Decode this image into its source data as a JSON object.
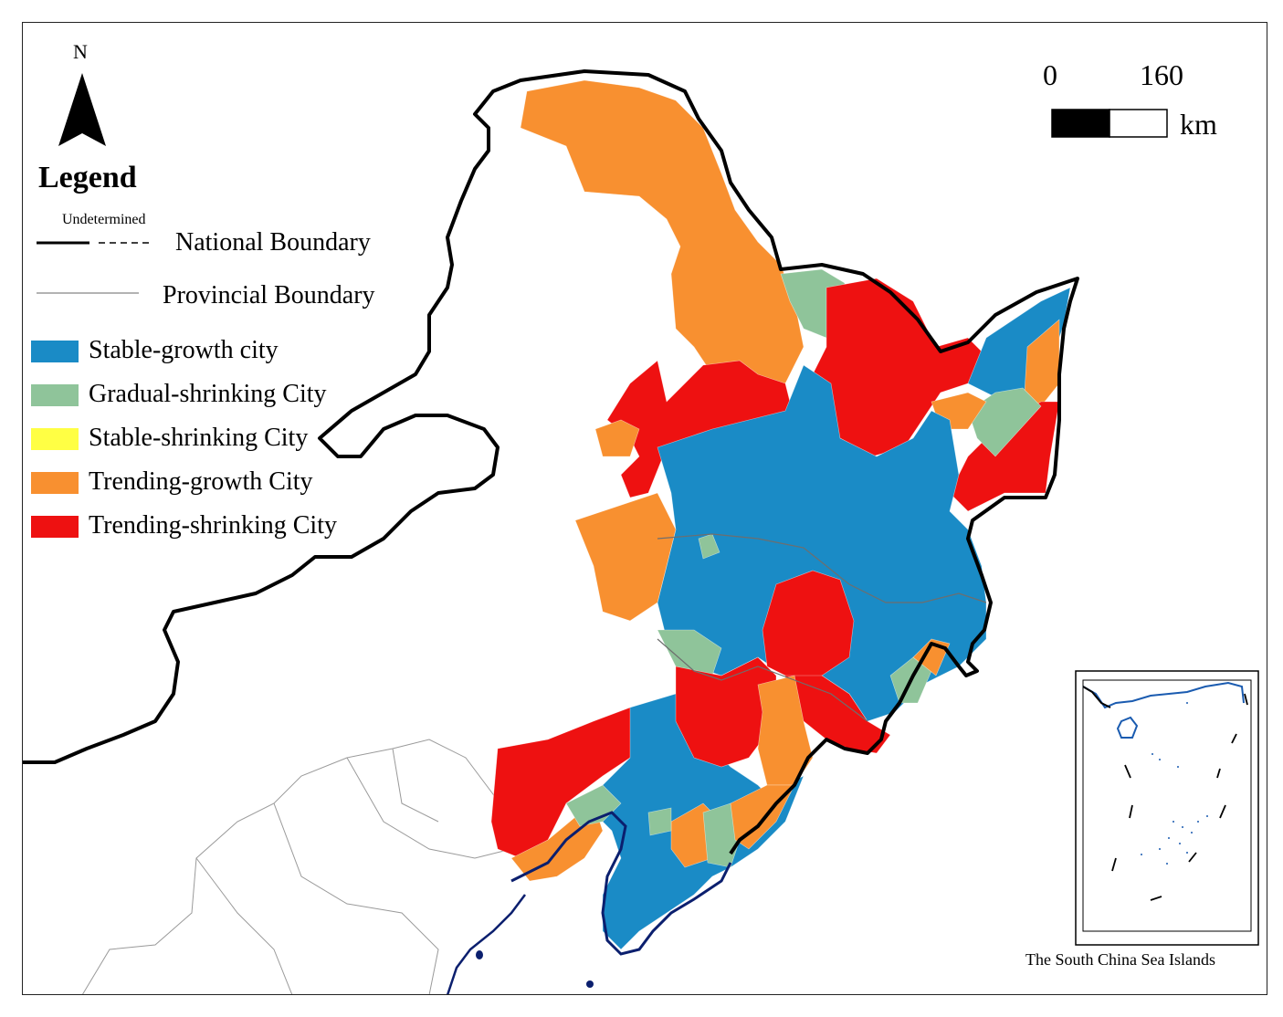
{
  "north_arrow": {
    "label": "N"
  },
  "legend": {
    "title": "Legend",
    "undetermined_label": "Undetermined",
    "national_boundary": "National Boundary",
    "provincial_boundary": "Provincial Boundary",
    "categories": [
      {
        "label": "Stable-growth city",
        "color": "#1a8bc6"
      },
      {
        "label": "Gradual-shrinking City",
        "color": "#8fc49a"
      },
      {
        "label": "Stable-shrinking City",
        "color": "#ffff44"
      },
      {
        "label": "Trending-growth City",
        "color": "#f89030"
      },
      {
        "label": "Trending-shrinking City",
        "color": "#ee1111"
      }
    ]
  },
  "scale_bar": {
    "start": "0",
    "end": "160",
    "unit": "km"
  },
  "inset": {
    "caption": "The South China Sea Islands"
  },
  "colors": {
    "stable_growth": "#1a8bc6",
    "gradual_shrinking": "#8fc49a",
    "trending_growth": "#f89030",
    "trending_shrinking": "#ee1111",
    "national_boundary": "#000000",
    "provincial_boundary": "#999999",
    "coastline": "#0b1f6e"
  }
}
